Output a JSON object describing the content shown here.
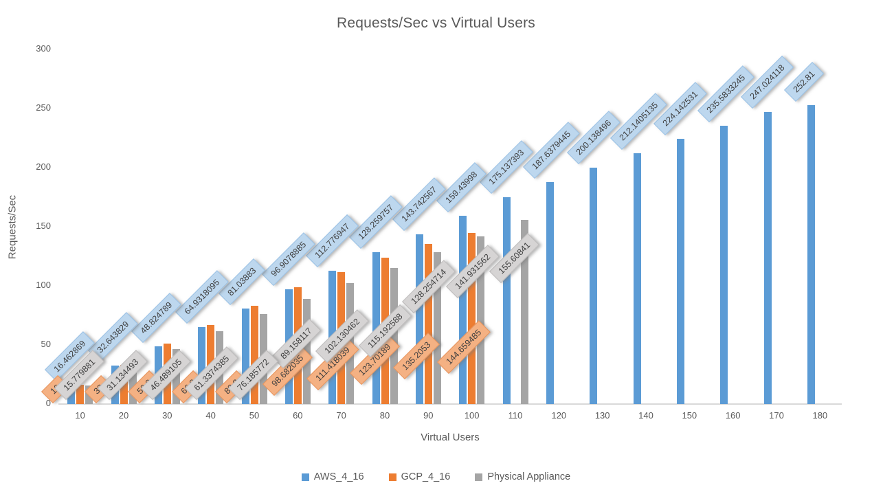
{
  "title": "Requests/Sec vs Virtual Users",
  "chart_data": {
    "type": "bar",
    "title": "Requests/Sec vs Virtual Users",
    "xlabel": "Virtual Users",
    "ylabel": "Requests/Sec",
    "ylim": [
      0,
      300
    ],
    "yticks": [
      0,
      50,
      100,
      150,
      200,
      250,
      300
    ],
    "categories": [
      10,
      20,
      30,
      40,
      50,
      60,
      70,
      80,
      90,
      100,
      110,
      120,
      130,
      140,
      150,
      160,
      170,
      180
    ],
    "gridlines": false,
    "legend_position": "bottom",
    "data_label_rotation_deg": 45,
    "series": [
      {
        "name": "AWS_4_16",
        "color": "#5B9BD5",
        "label_fill": "#BDD7EE",
        "label_border": "#9BC2E6",
        "values": [
          16.462869,
          32.643829,
          48.824789,
          64.9318095,
          81.03883,
          96.9078885,
          112.776947,
          128.259757,
          143.742567,
          159.43998,
          175.137393,
          187.6379445,
          200.138496,
          212.1405135,
          224.142531,
          235.5833245,
          247.024118,
          252.81
        ],
        "data_labels": [
          "16.462869",
          "32.643829",
          "48.824789",
          "64.9318095",
          "81.03883",
          "96.9078885",
          "112.776947",
          "128.259757",
          "143.742567",
          "159.43998",
          "175.137393",
          "187.6379445",
          "200.138496",
          "212.1405135",
          "224.142531",
          "235.5833245",
          "247.024118",
          "252.81"
        ]
      },
      {
        "name": "GCP_4_16",
        "color": "#ED7D31",
        "label_fill": "#F4B183",
        "label_border": "#E8945C",
        "values": [
          16.0,
          33.0,
          50.9,
          66.8,
          83.3,
          98.682035,
          111.418039,
          123.70189,
          135.2053,
          144.659485
        ],
        "data_labels": [
          "16",
          "33",
          "50.9",
          "66.8",
          "83.3",
          "98.682035",
          "111.418039",
          "123.70189",
          "135.2053",
          "144.659485"
        ],
        "occluded_label_indices": [
          0,
          1,
          2,
          3,
          4
        ],
        "estimated_value_indices": [
          0,
          1,
          2,
          3,
          4
        ]
      },
      {
        "name": "Physical Appliance",
        "color": "#A5A5A5",
        "label_fill": "#D6D4D4",
        "label_border": "#BEBCBC",
        "values": [
          15.779881,
          31.134493,
          46.489105,
          61.3374385,
          76.185772,
          89.158117,
          102.130462,
          115.192588,
          128.254714,
          141.931562,
          155.60841
        ],
        "data_labels": [
          "15.779881",
          "31.134493",
          "46.489105",
          "61.3374385",
          "76.185772",
          "89.158117",
          "102.130462",
          "115.192588",
          "128.254714",
          "141.931562",
          "155.60841"
        ]
      }
    ]
  }
}
